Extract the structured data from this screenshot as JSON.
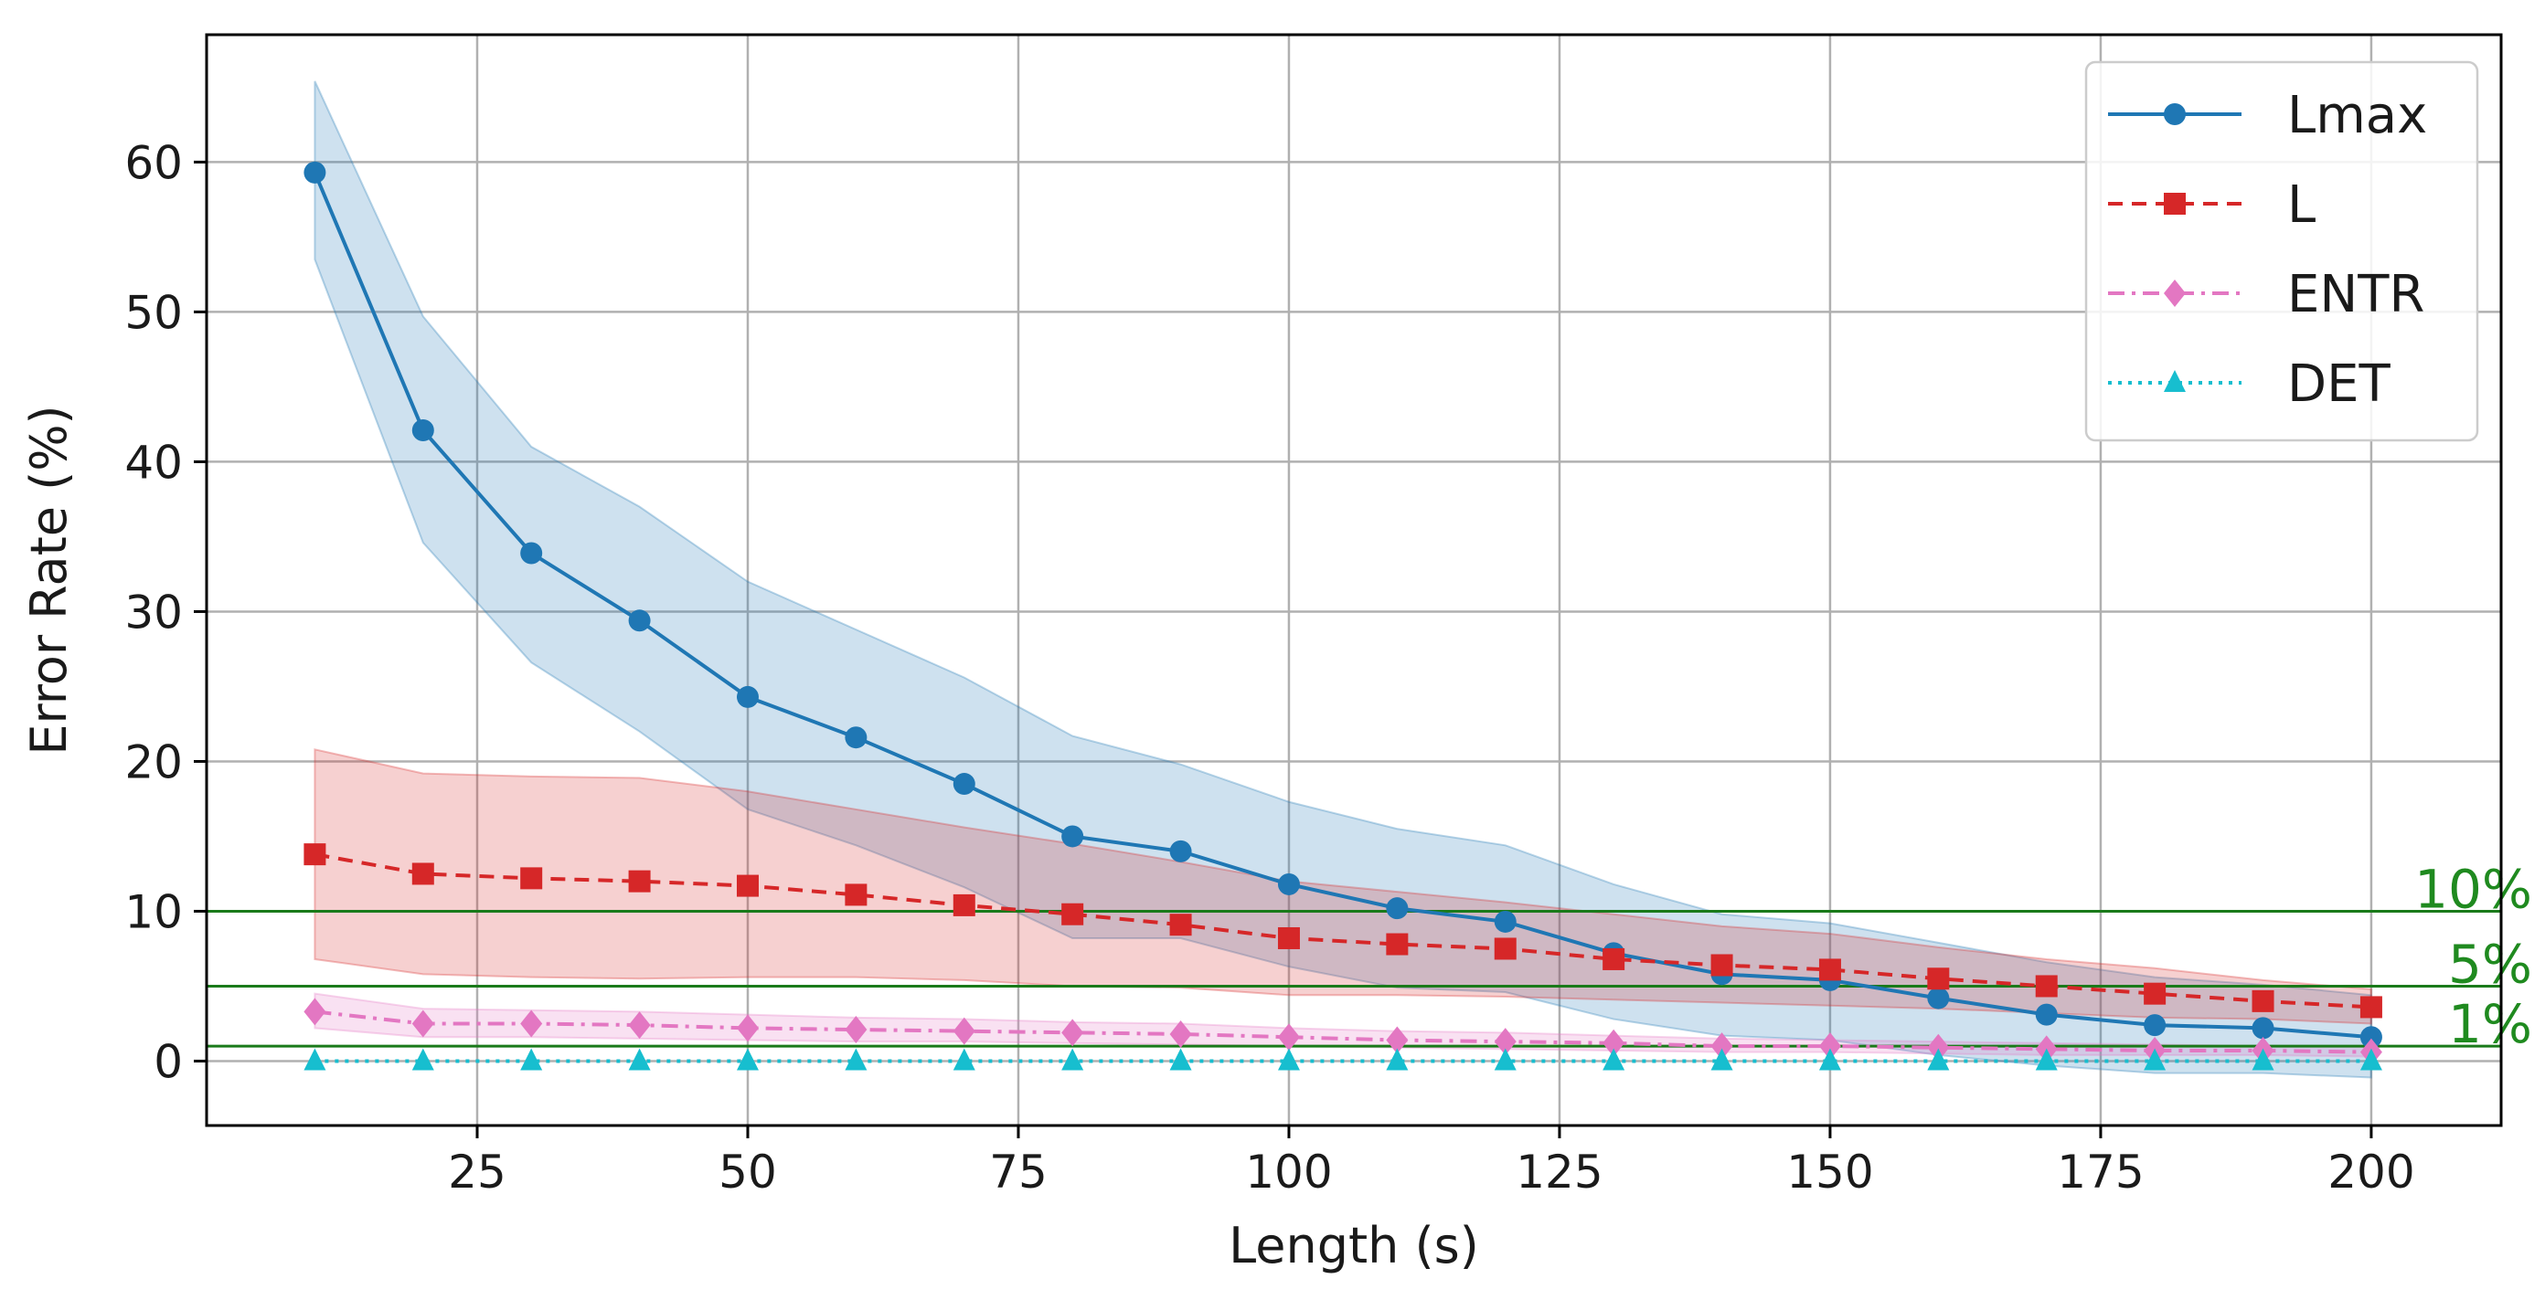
{
  "chart_data": {
    "type": "line",
    "xlabel": "Length (s)",
    "ylabel": "Error Rate (%)",
    "xlim": [
      0,
      212
    ],
    "ylim": [
      -4.3,
      68.5
    ],
    "xticks": [
      25,
      50,
      75,
      100,
      125,
      150,
      175,
      200
    ],
    "yticks": [
      0,
      10,
      20,
      30,
      40,
      50,
      60
    ],
    "grid": true,
    "legend_position": "top-right",
    "x": [
      10,
      20,
      30,
      40,
      50,
      60,
      70,
      80,
      90,
      100,
      110,
      120,
      130,
      140,
      150,
      160,
      170,
      180,
      190,
      200
    ],
    "series": [
      {
        "name": "Lmax",
        "color": "#1f77b4",
        "marker": "circle",
        "linestyle": "solid",
        "values": [
          59.3,
          42.1,
          33.9,
          29.4,
          24.3,
          21.6,
          18.5,
          15.0,
          14.0,
          11.8,
          10.2,
          9.3,
          7.2,
          5.8,
          5.4,
          4.2,
          3.1,
          2.4,
          2.2,
          1.6
        ],
        "lower": [
          53.5,
          34.6,
          26.6,
          22.0,
          16.8,
          14.4,
          11.6,
          8.2,
          8.2,
          6.3,
          4.9,
          4.6,
          2.8,
          1.7,
          1.4,
          0.4,
          -0.3,
          -0.8,
          -0.8,
          -1.1
        ],
        "upper": [
          65.4,
          49.7,
          41.0,
          37.0,
          32.0,
          28.8,
          25.6,
          21.7,
          19.8,
          17.3,
          15.5,
          14.4,
          11.8,
          9.8,
          9.2,
          7.9,
          6.6,
          5.6,
          5.1,
          4.4
        ]
      },
      {
        "name": "L",
        "color": "#d62728",
        "marker": "square",
        "linestyle": "dashed",
        "values": [
          13.8,
          12.5,
          12.2,
          12.0,
          11.7,
          11.1,
          10.4,
          9.8,
          9.1,
          8.2,
          7.8,
          7.5,
          6.8,
          6.4,
          6.1,
          5.5,
          5.0,
          4.5,
          4.0,
          3.6
        ],
        "lower": [
          6.8,
          5.8,
          5.6,
          5.5,
          5.6,
          5.6,
          5.4,
          5.0,
          4.9,
          4.4,
          4.4,
          4.3,
          4.1,
          3.9,
          3.7,
          3.5,
          3.2,
          2.9,
          2.8,
          2.5
        ],
        "upper": [
          20.8,
          19.2,
          19.0,
          18.9,
          18.0,
          16.8,
          15.6,
          14.5,
          13.3,
          12.0,
          11.3,
          10.6,
          9.8,
          9.0,
          8.5,
          7.6,
          6.8,
          6.2,
          5.4,
          4.8
        ]
      },
      {
        "name": "ENTR",
        "color": "#e377c2",
        "marker": "diamond",
        "linestyle": "dashdot",
        "values": [
          3.3,
          2.5,
          2.5,
          2.4,
          2.2,
          2.1,
          2.0,
          1.9,
          1.8,
          1.6,
          1.4,
          1.3,
          1.2,
          1.0,
          1.0,
          0.9,
          0.8,
          0.7,
          0.7,
          0.6
        ],
        "lower": [
          2.2,
          1.6,
          1.6,
          1.5,
          1.4,
          1.3,
          1.3,
          1.2,
          1.1,
          1.0,
          0.9,
          0.8,
          0.7,
          0.6,
          0.6,
          0.5,
          0.4,
          0.4,
          0.4,
          0.3
        ],
        "upper": [
          4.5,
          3.5,
          3.4,
          3.3,
          3.1,
          2.9,
          2.8,
          2.6,
          2.5,
          2.2,
          2.0,
          1.9,
          1.7,
          1.5,
          1.4,
          1.3,
          1.2,
          1.1,
          1.0,
          1.0
        ]
      },
      {
        "name": "DET",
        "color": "#17becf",
        "marker": "triangle",
        "linestyle": "dotted",
        "values": [
          0,
          0,
          0,
          0,
          0,
          0,
          0,
          0,
          0,
          0,
          0,
          0,
          0,
          0,
          0,
          0,
          0,
          0,
          0,
          0
        ]
      }
    ],
    "reference_lines": [
      {
        "y": 10,
        "label": "10%",
        "color": "#1a7a1a"
      },
      {
        "y": 5,
        "label": "5%",
        "color": "#1a7a1a"
      },
      {
        "y": 1,
        "label": "1%",
        "color": "#1a7a1a"
      }
    ]
  }
}
